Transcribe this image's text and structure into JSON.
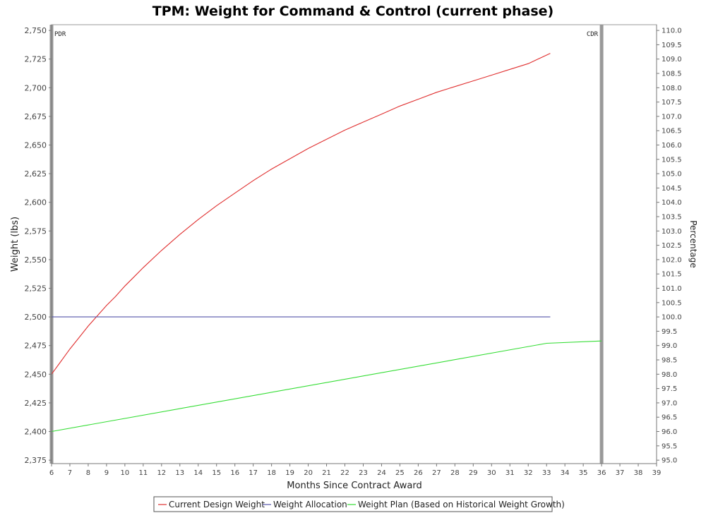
{
  "chart_data": {
    "type": "line",
    "title": "TPM: Weight for Command & Control (current phase)",
    "xlabel": "Months Since Contract Award",
    "ylabel": "Weight (lbs)",
    "y2label": "Percentage",
    "xlim": [
      6,
      39
    ],
    "ylim": [
      2372,
      2755
    ],
    "y2lim": [
      94.88,
      110.2
    ],
    "x_ticks": [
      6,
      7,
      8,
      9,
      10,
      11,
      12,
      13,
      14,
      15,
      16,
      17,
      18,
      19,
      20,
      21,
      22,
      23,
      24,
      25,
      26,
      27,
      28,
      29,
      30,
      31,
      32,
      33,
      34,
      35,
      36,
      37,
      38,
      39
    ],
    "y_ticks": [
      2375,
      2400,
      2425,
      2450,
      2475,
      2500,
      2525,
      2550,
      2575,
      2600,
      2625,
      2650,
      2675,
      2700,
      2725,
      2750
    ],
    "y_tick_labels": [
      "2,375",
      "2,400",
      "2,425",
      "2,450",
      "2,475",
      "2,500",
      "2,525",
      "2,550",
      "2,575",
      "2,600",
      "2,625",
      "2,650",
      "2,675",
      "2,700",
      "2,725",
      "2,750"
    ],
    "y2_tick_labels": [
      "95.0",
      "95.5",
      "96.0",
      "96.5",
      "97.0",
      "97.5",
      "98.0",
      "98.5",
      "99.0",
      "99.5",
      "100.0",
      "100.5",
      "101.0",
      "101.5",
      "102.0",
      "102.5",
      "103.0",
      "103.5",
      "104.0",
      "104.5",
      "105.0",
      "105.5",
      "106.0",
      "106.5",
      "107.0",
      "107.5",
      "108.0",
      "108.5",
      "109.0",
      "109.5",
      "110.0"
    ],
    "grid": false,
    "legend_position": "bottom",
    "markers": [
      {
        "label": "PDR",
        "x": 6
      },
      {
        "label": "CDR",
        "x": 36
      }
    ],
    "series": [
      {
        "name": "Current Design Weight",
        "color": "#e03030",
        "x": [
          6,
          6.5,
          7,
          7.5,
          8,
          8.5,
          9,
          9.5,
          10,
          10.5,
          11,
          12,
          13,
          14,
          15,
          16,
          17,
          18,
          19,
          20,
          21,
          22,
          23,
          24,
          25,
          26,
          27,
          28,
          29,
          30,
          31,
          32,
          33.2
        ],
        "y": [
          2450,
          2461,
          2472,
          2482,
          2492,
          2501,
          2510,
          2518,
          2527,
          2535,
          2543,
          2558,
          2572,
          2585,
          2597,
          2608,
          2619,
          2629,
          2638,
          2647,
          2655,
          2663,
          2670,
          2677,
          2684,
          2690,
          2696,
          2701,
          2706,
          2711,
          2716,
          2721,
          2730
        ]
      },
      {
        "name": "Weight Allocation",
        "color": "#5555aa",
        "x": [
          6,
          33.2
        ],
        "y": [
          2500,
          2500
        ]
      },
      {
        "name": "Weight Plan (Based on Historical Weight Growth)",
        "color": "#33dd33",
        "x": [
          6,
          33,
          36
        ],
        "y": [
          2400,
          2477,
          2479
        ]
      }
    ]
  }
}
